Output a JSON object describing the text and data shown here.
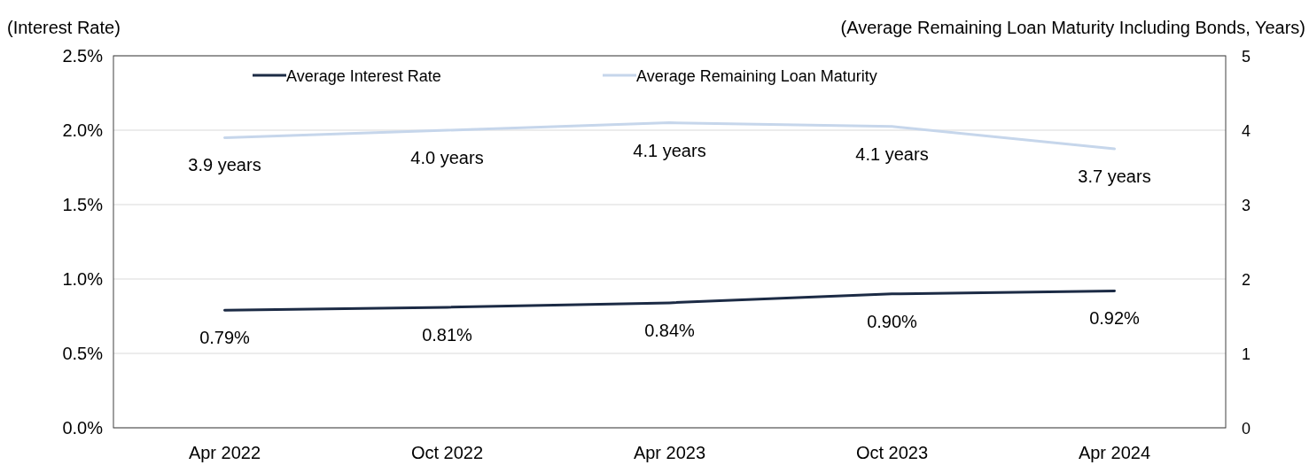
{
  "chart_data": {
    "type": "line",
    "ylabel": "(Interest Rate)",
    "y2label": "(Average Remaining Loan Maturity Including Bonds, Years)",
    "categories": [
      "Apr 2022",
      "Oct 2022",
      "Apr 2023",
      "Oct 2023",
      "Apr 2024"
    ],
    "series": [
      {
        "name": "Average Interest Rate",
        "color": "#1c2b45",
        "values": [
          0.79,
          0.81,
          0.84,
          0.9,
          0.92
        ],
        "value_labels": [
          "0.79%",
          "0.81%",
          "0.84%",
          "0.90%",
          "0.92%"
        ]
      },
      {
        "name": "Average Remaining Loan Maturity",
        "color": "#c6d6eb",
        "axis": "y2",
        "values": [
          3.9,
          4.0,
          4.1,
          4.05,
          3.75
        ],
        "value_labels": [
          "3.9 years",
          "4.0 years",
          "4.1 years",
          "4.1 years",
          "3.7 years"
        ]
      }
    ],
    "ylim": [
      0,
      2.5
    ],
    "yticks": [
      {
        "value": 0,
        "label": "0.0%"
      },
      {
        "value": 0.5,
        "label": "0.5%"
      },
      {
        "value": 1,
        "label": "1.0%"
      },
      {
        "value": 1.5,
        "label": "1.5%"
      },
      {
        "value": 2,
        "label": "2.0%"
      },
      {
        "value": 2.5,
        "label": "2.5%"
      }
    ],
    "y2lim": [
      0,
      5
    ],
    "y2ticks": [
      0,
      1,
      2,
      3,
      4,
      5
    ],
    "grid": "y",
    "legend": "top",
    "marker": "none",
    "line_style": "solid"
  }
}
